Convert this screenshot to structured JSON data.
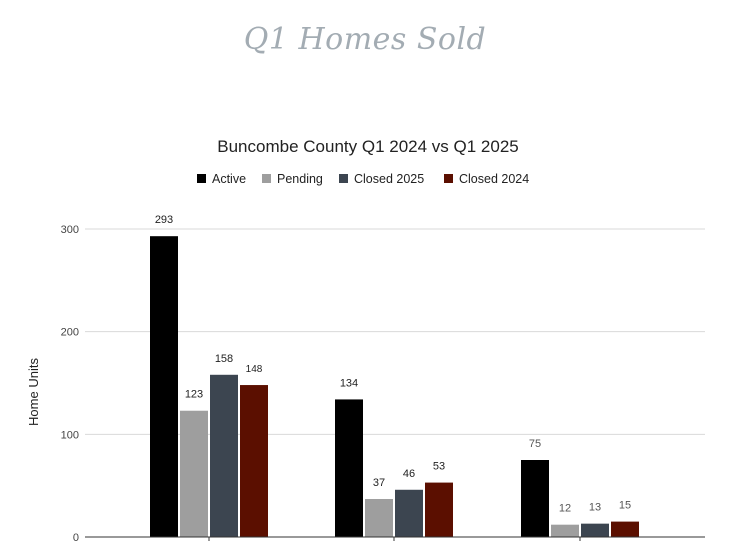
{
  "page_title": "Q1 Homes Sold",
  "chart_data": {
    "type": "bar",
    "title": "Buncombe County Q1 2024 vs Q1 2025",
    "xlabel": "",
    "ylabel": "Home Units",
    "ylim": [
      0,
      300
    ],
    "yticks": [
      0,
      100,
      200,
      300
    ],
    "grid": true,
    "legend_position": "top",
    "categories": [
      "",
      "",
      ""
    ],
    "series": [
      {
        "name": "Active",
        "color": "#000000",
        "values": [
          293,
          134,
          75
        ]
      },
      {
        "name": "Pending",
        "color": "#9e9e9e",
        "values": [
          123,
          37,
          12
        ]
      },
      {
        "name": "Closed 2025",
        "color": "#3c4550",
        "values": [
          158,
          46,
          13
        ]
      },
      {
        "name": "Closed 2024",
        "color": "#5b0f00",
        "values": [
          148,
          53,
          15
        ]
      }
    ]
  }
}
